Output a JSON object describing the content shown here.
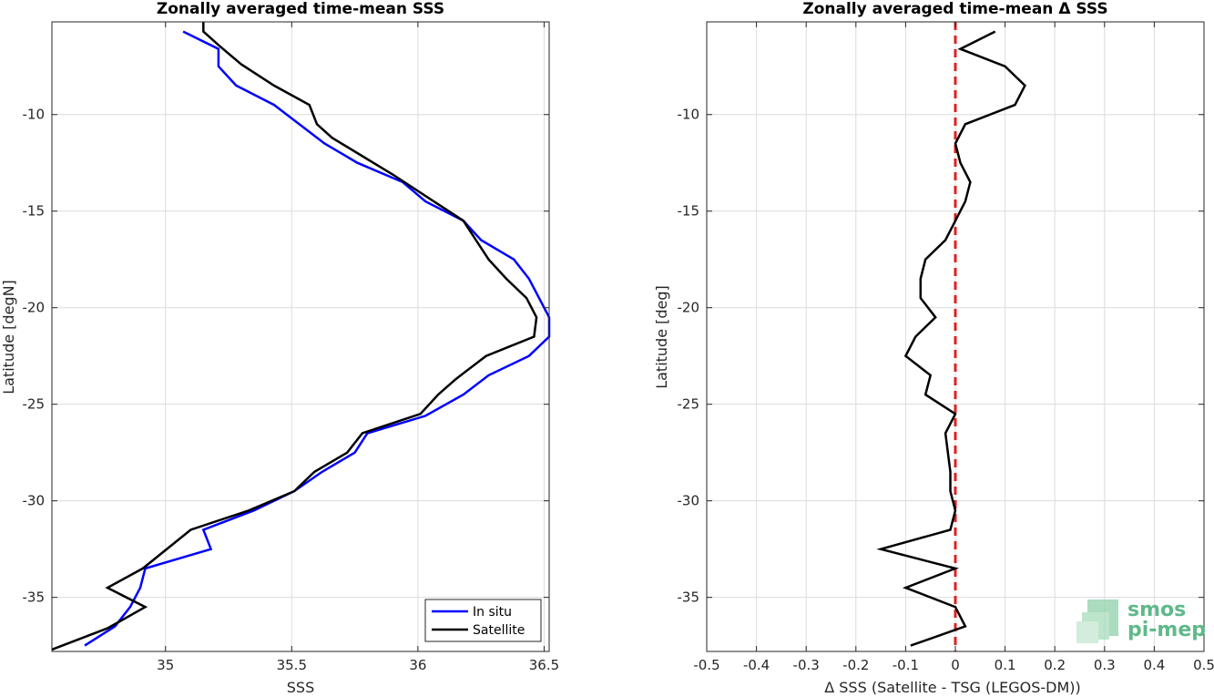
{
  "chart_data": [
    {
      "type": "line",
      "title": "Zonally averaged time-mean SSS",
      "xlabel": "SSS",
      "ylabel": "Latitude [degN]",
      "xlim": [
        34.55,
        36.52
      ],
      "ylim": [
        -37.8,
        -5.2
      ],
      "xticks": [
        "35",
        "35.5",
        "36",
        "36.5"
      ],
      "xtick_values": [
        35,
        35.5,
        36,
        36.5
      ],
      "yticks": [
        "-10",
        "-15",
        "-20",
        "-25",
        "-30",
        "-35"
      ],
      "ytick_values": [
        -10,
        -15,
        -20,
        -25,
        -30,
        -35
      ],
      "grid": true,
      "legend_position": "bottom-right",
      "series": [
        {
          "name": "In situ",
          "color": "#0000ff",
          "points": [
            [
              35.07,
              -5.7
            ],
            [
              35.21,
              -6.6
            ],
            [
              35.21,
              -7.5
            ],
            [
              35.28,
              -8.5
            ],
            [
              35.43,
              -9.5
            ],
            [
              35.53,
              -10.5
            ],
            [
              35.63,
              -11.5
            ],
            [
              35.76,
              -12.5
            ],
            [
              35.94,
              -13.5
            ],
            [
              36.03,
              -14.5
            ],
            [
              36.18,
              -15.5
            ],
            [
              36.25,
              -16.5
            ],
            [
              36.38,
              -17.5
            ],
            [
              36.44,
              -18.5
            ],
            [
              36.48,
              -19.5
            ],
            [
              36.52,
              -20.5
            ],
            [
              36.52,
              -21.5
            ],
            [
              36.44,
              -22.5
            ],
            [
              36.28,
              -23.5
            ],
            [
              36.18,
              -24.5
            ],
            [
              36.03,
              -25.6
            ],
            [
              35.8,
              -26.5
            ],
            [
              35.75,
              -27.5
            ],
            [
              35.62,
              -28.5
            ],
            [
              35.51,
              -29.5
            ],
            [
              35.35,
              -30.5
            ],
            [
              35.15,
              -31.5
            ],
            [
              35.18,
              -32.5
            ],
            [
              34.92,
              -33.5
            ],
            [
              34.9,
              -34.5
            ],
            [
              34.86,
              -35.5
            ],
            [
              34.8,
              -36.5
            ],
            [
              34.68,
              -37.5
            ]
          ]
        },
        {
          "name": "Satellite",
          "color": "#000000",
          "points": [
            [
              35.15,
              -5.2
            ],
            [
              35.15,
              -5.7
            ],
            [
              35.21,
              -6.4
            ],
            [
              35.3,
              -7.4
            ],
            [
              35.43,
              -8.5
            ],
            [
              35.57,
              -9.5
            ],
            [
              35.6,
              -10.5
            ],
            [
              35.66,
              -11.2
            ],
            [
              35.9,
              -13.1
            ],
            [
              36.18,
              -15.5
            ],
            [
              36.23,
              -16.5
            ],
            [
              36.28,
              -17.5
            ],
            [
              36.35,
              -18.5
            ],
            [
              36.43,
              -19.5
            ],
            [
              36.47,
              -20.5
            ],
            [
              36.46,
              -21.5
            ],
            [
              36.27,
              -22.5
            ],
            [
              36.15,
              -23.7
            ],
            [
              36.08,
              -24.5
            ],
            [
              36.01,
              -25.5
            ],
            [
              35.78,
              -26.5
            ],
            [
              35.72,
              -27.5
            ],
            [
              35.59,
              -28.5
            ],
            [
              35.51,
              -29.5
            ],
            [
              35.33,
              -30.5
            ],
            [
              35.1,
              -31.5
            ],
            [
              34.91,
              -33.5
            ],
            [
              34.77,
              -34.5
            ],
            [
              34.92,
              -35.5
            ],
            [
              34.77,
              -36.6
            ],
            [
              34.55,
              -37.7
            ]
          ]
        }
      ]
    },
    {
      "type": "line",
      "title": "Zonally averaged time-mean Δ SSS",
      "xlabel": "Δ SSS (Satellite - TSG (LEGOS-DM))",
      "ylabel": "Latitude [deg]",
      "xlim": [
        -0.5,
        0.5
      ],
      "ylim": [
        -37.8,
        -5.2
      ],
      "xticks": [
        "-0.5",
        "-0.4",
        "-0.3",
        "-0.2",
        "-0.1",
        "0",
        "0.1",
        "0.2",
        "0.3",
        "0.4",
        "0.5"
      ],
      "xtick_values": [
        -0.5,
        -0.4,
        -0.3,
        -0.2,
        -0.1,
        0,
        0.1,
        0.2,
        0.3,
        0.4,
        0.5
      ],
      "yticks": [
        "-10",
        "-15",
        "-20",
        "-25",
        "-30",
        "-35"
      ],
      "ytick_values": [
        -10,
        -15,
        -20,
        -25,
        -30,
        -35
      ],
      "grid": true,
      "reference_line": {
        "x": 0,
        "color": "#e02020",
        "style": "dashed"
      },
      "series": [
        {
          "name": "",
          "color": "#000000",
          "points": [
            [
              0.08,
              -5.7
            ],
            [
              0.01,
              -6.6
            ],
            [
              0.1,
              -7.5
            ],
            [
              0.14,
              -8.5
            ],
            [
              0.12,
              -9.5
            ],
            [
              0.02,
              -10.5
            ],
            [
              0.0,
              -11.5
            ],
            [
              0.01,
              -12.5
            ],
            [
              0.03,
              -13.5
            ],
            [
              0.02,
              -14.5
            ],
            [
              0.0,
              -15.5
            ],
            [
              -0.02,
              -16.5
            ],
            [
              -0.06,
              -17.5
            ],
            [
              -0.07,
              -18.5
            ],
            [
              -0.07,
              -19.5
            ],
            [
              -0.04,
              -20.5
            ],
            [
              -0.08,
              -21.5
            ],
            [
              -0.1,
              -22.5
            ],
            [
              -0.05,
              -23.5
            ],
            [
              -0.06,
              -24.5
            ],
            [
              0.0,
              -25.5
            ],
            [
              -0.02,
              -26.5
            ],
            [
              -0.015,
              -27.5
            ],
            [
              -0.01,
              -28.5
            ],
            [
              -0.01,
              -29.5
            ],
            [
              0.0,
              -30.5
            ],
            [
              -0.01,
              -31.5
            ],
            [
              -0.15,
              -32.5
            ],
            [
              0.0,
              -33.5
            ],
            [
              -0.1,
              -34.5
            ],
            [
              0.0,
              -35.5
            ],
            [
              0.02,
              -36.5
            ],
            [
              -0.09,
              -37.5
            ]
          ]
        }
      ]
    }
  ],
  "legend": {
    "items": [
      {
        "label": "In situ",
        "color": "#0000ff"
      },
      {
        "label": "Satellite",
        "color": "#000000"
      }
    ]
  },
  "logo": {
    "line1": "smos",
    "line2": "pi-mep",
    "color": "#5fb98a"
  }
}
